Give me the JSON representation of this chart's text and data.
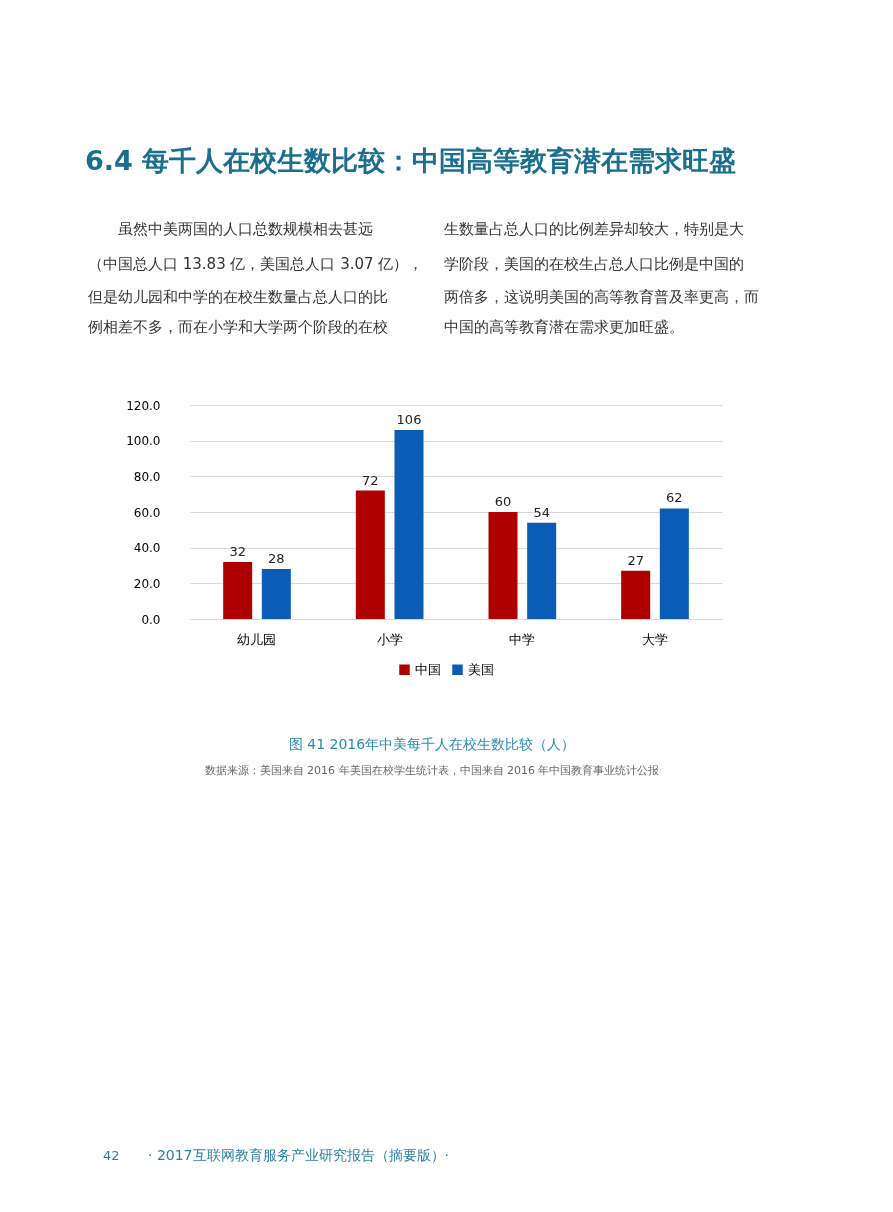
{
  "chart_data": {
    "type": "bar",
    "title": "6.4 每千人在校生数比较：中国高等教育潜在需求旺盛",
    "categories": [
      "幼儿园",
      "小学",
      "中学",
      "大学"
    ],
    "series": [
      {
        "name": "中国",
        "color": "#ae0000",
        "values": [
          32,
          72,
          60,
          27
        ]
      },
      {
        "name": "美国",
        "color": "#0b5cb5",
        "values": [
          28,
          106,
          54,
          62
        ]
      }
    ],
    "ylim": [
      0,
      120
    ],
    "yticks": [
      {
        "value": 0,
        "label": "0.0"
      },
      {
        "value": 20,
        "label": "20.0"
      },
      {
        "value": 40,
        "label": "40.0"
      },
      {
        "value": 60,
        "label": "60.0"
      },
      {
        "value": 80,
        "label": "80.0"
      },
      {
        "value": 100,
        "label": "100.0"
      },
      {
        "value": 120,
        "label": "120.0"
      }
    ],
    "grid": "y",
    "legend": "bottom",
    "data_labels": true,
    "annotations": [
      "虽然中美两国的人口总数规模相去甚远",
      "（中国总人口 13.83 亿，美国总人口 3.07 亿），",
      "但是幼儿园和中学的在校生数量占总人口的比",
      "例相差不多，而在小学和大学两个阶段的在校",
      "生数量占总人口的比例差异却较大，特别是大",
      "学阶段，美国的在校生占总人口比例是中国的",
      "两倍多，这说明美国的高等教育普及率更高，而",
      "中国的高等教育潜在需求更加旺盛。",
      "图 41 2016年中美每千人在校生数比较（人）",
      "数据来源：美国来自 2016 年美国在校学生统计表，中国来自 2016 年中国教育事业统计公报",
      "42",
      "· 2017互联网教育服务产业研究报告（摘要版）·"
    ]
  }
}
